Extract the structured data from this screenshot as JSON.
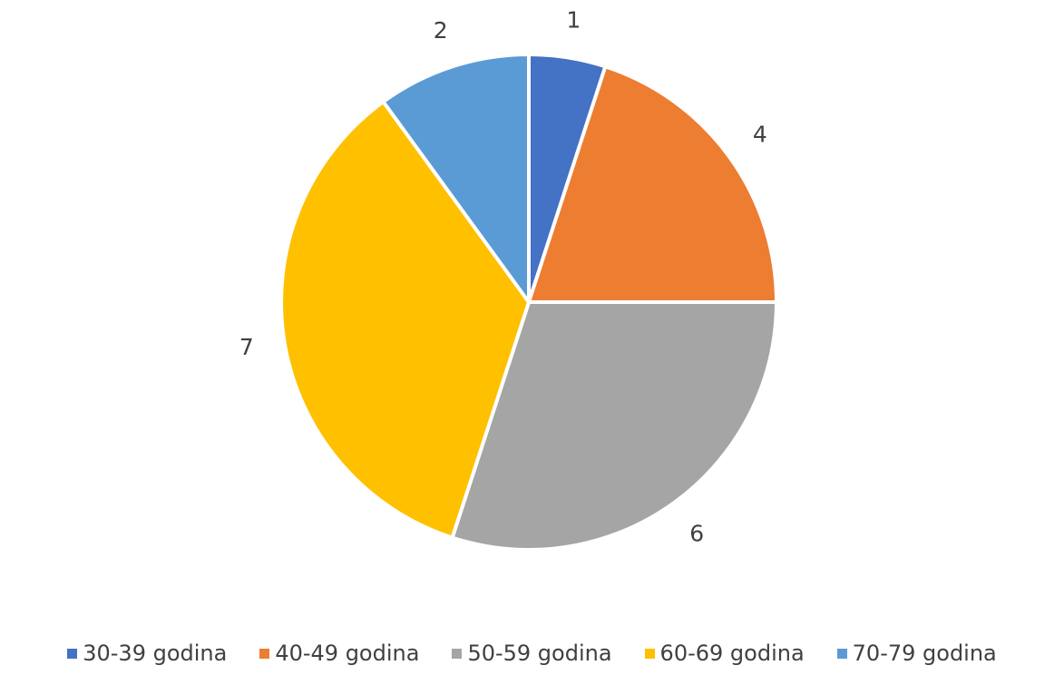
{
  "chart_data": {
    "type": "pie",
    "categories": [
      "30-39 godina",
      "40-49 godina",
      "50-59 godina",
      "60-69 godina",
      "70-79 godina"
    ],
    "values": [
      1,
      4,
      6,
      7,
      2
    ],
    "data_labels": [
      "1",
      "4",
      "6",
      "7",
      "2"
    ],
    "colors": [
      "#4472C4",
      "#ED7D31",
      "#A5A5A5",
      "#FFC000",
      "#5B9BD5"
    ],
    "start_angle_deg": 0,
    "direction": "clockwise",
    "legend_position": "bottom",
    "title": ""
  }
}
